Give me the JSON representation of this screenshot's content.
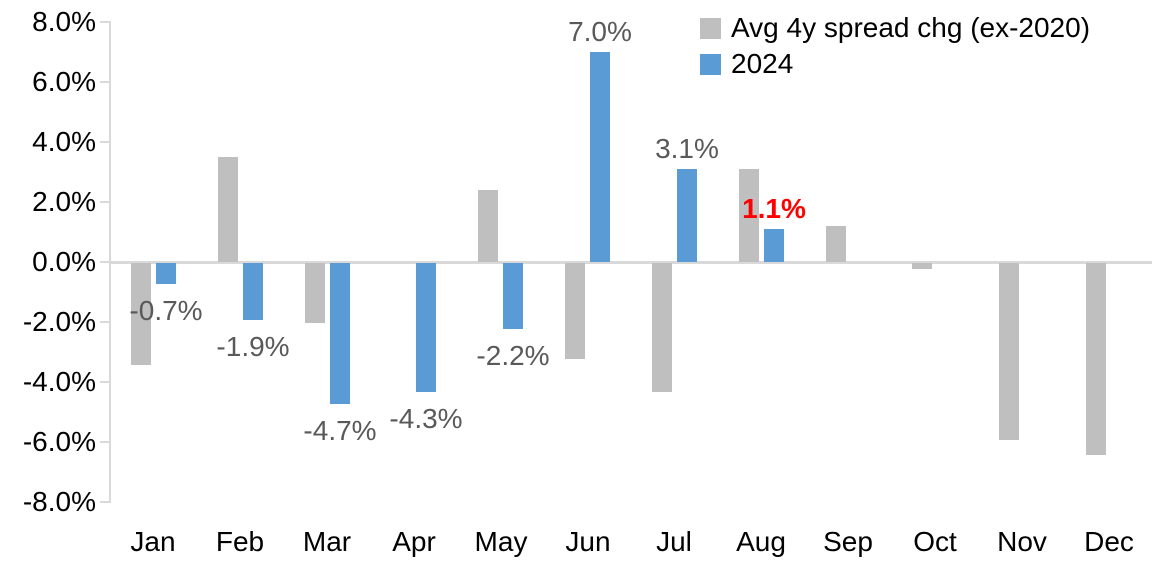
{
  "chart_data": {
    "type": "bar",
    "title": "",
    "xlabel": "",
    "ylabel": "",
    "categories": [
      "Jan",
      "Feb",
      "Mar",
      "Apr",
      "May",
      "Jun",
      "Jul",
      "Aug",
      "Sep",
      "Oct",
      "Nov",
      "Dec"
    ],
    "series": [
      {
        "name": "Avg 4y spread chg (ex-2020)",
        "color": "#bfbfbf",
        "values": [
          -3.4,
          3.5,
          -2.0,
          0.0,
          2.4,
          -3.2,
          -4.3,
          3.1,
          1.2,
          -0.2,
          -5.9,
          -6.4
        ]
      },
      {
        "name": "2024",
        "color": "#5b9bd5",
        "values": [
          -0.7,
          -1.9,
          -4.7,
          -4.3,
          -2.2,
          7.0,
          3.1,
          1.1,
          null,
          null,
          null,
          null
        ]
      }
    ],
    "data_labels": [
      {
        "series": "2024",
        "category": "Jan",
        "index": 0,
        "text": "-0.7%",
        "color": "#595959",
        "bold": false
      },
      {
        "series": "2024",
        "category": "Feb",
        "index": 1,
        "text": "-1.9%",
        "color": "#595959",
        "bold": false
      },
      {
        "series": "2024",
        "category": "Mar",
        "index": 2,
        "text": "-4.7%",
        "color": "#595959",
        "bold": false
      },
      {
        "series": "2024",
        "category": "Apr",
        "index": 3,
        "text": "-4.3%",
        "color": "#595959",
        "bold": false
      },
      {
        "series": "2024",
        "category": "May",
        "index": 4,
        "text": "-2.2%",
        "color": "#595959",
        "bold": false
      },
      {
        "series": "2024",
        "category": "Jun",
        "index": 5,
        "text": "7.0%",
        "color": "#595959",
        "bold": false
      },
      {
        "series": "2024",
        "category": "Jul",
        "index": 6,
        "text": "3.1%",
        "color": "#595959",
        "bold": false
      },
      {
        "series": "2024",
        "category": "Aug",
        "index": 7,
        "text": "1.1%",
        "color": "#ff0000",
        "bold": true
      }
    ],
    "ylim": [
      -8,
      8
    ],
    "ytick_step": 2,
    "ytick_labels": [
      "8.0%",
      "6.0%",
      "4.0%",
      "2.0%",
      "0.0%",
      "-2.0%",
      "-4.0%",
      "-6.0%",
      "-8.0%"
    ],
    "ytick_values": [
      8,
      6,
      4,
      2,
      0,
      -2,
      -4,
      -6,
      -8
    ],
    "grid": "zero-line-only",
    "legend_position": "top-right",
    "axis_color": "#d9d9d9",
    "axis_text_color": "#000000",
    "data_label_color": "#595959",
    "highlight_color": "#ff0000"
  }
}
